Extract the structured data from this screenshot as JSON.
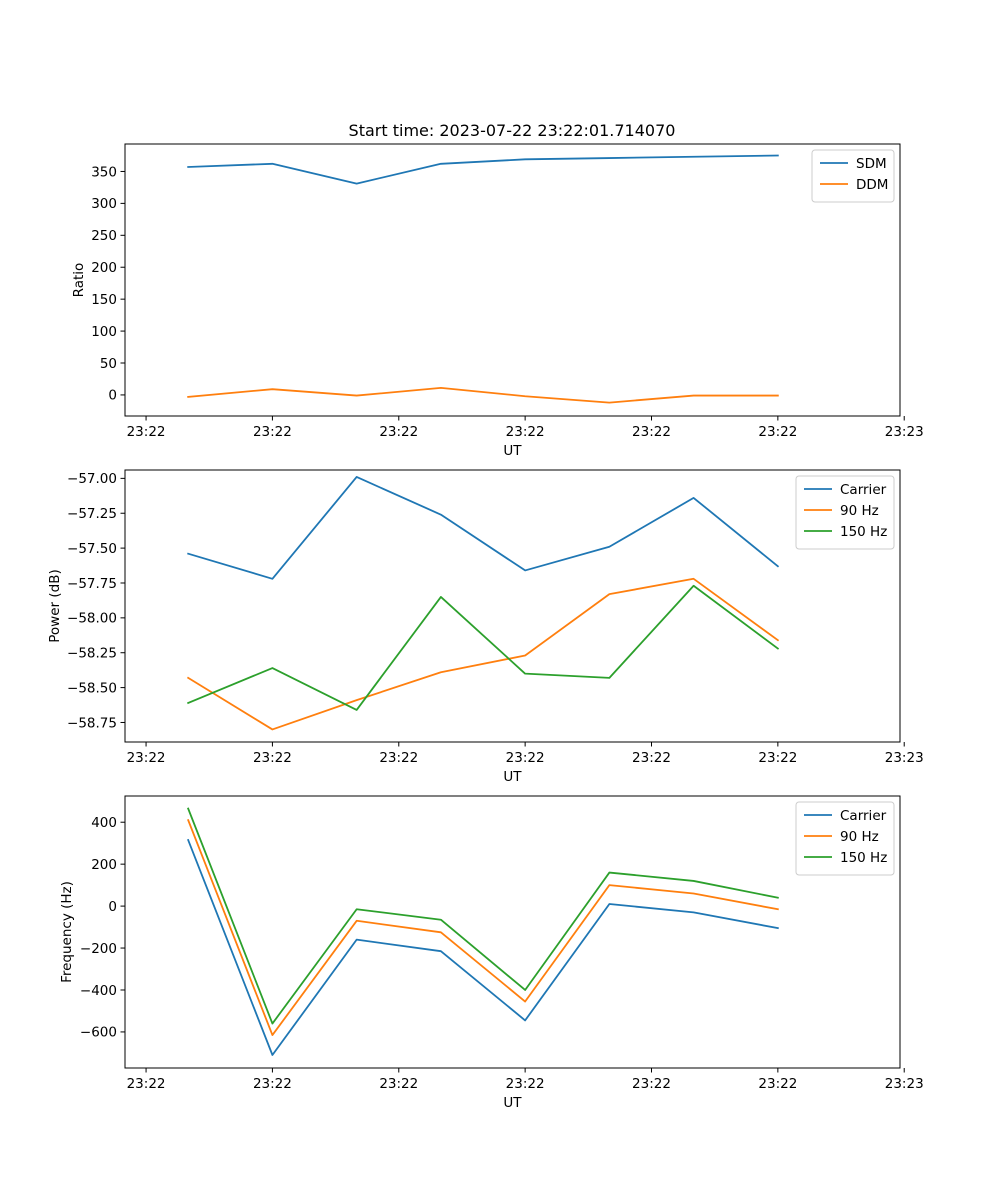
{
  "figure_title": "Start time: 2023-07-22 23:22:01.714070",
  "colors": {
    "blue": "#1f77b4",
    "orange": "#ff7f0e",
    "green": "#2ca02c"
  },
  "chart_data": [
    {
      "type": "line",
      "title": "Start time: 2023-07-22 23:22:01.714070",
      "xlabel": "UT",
      "ylabel": "Ratio",
      "xlim": [
        0,
        9.2
      ],
      "x": [
        0.75,
        1.75,
        2.75,
        3.75,
        4.75,
        5.75,
        6.75,
        7.75
      ],
      "xticks": [
        0.25,
        1.75,
        3.25,
        4.75,
        6.25,
        7.75,
        9.25
      ],
      "xtick_labels": [
        "23:22",
        "23:22",
        "23:22",
        "23:22",
        "23:22",
        "23:22",
        "23:23"
      ],
      "ylim": [
        -33,
        393
      ],
      "yticks": [
        0,
        50,
        100,
        150,
        200,
        250,
        300,
        350
      ],
      "ytick_labels": [
        "0",
        "50",
        "100",
        "150",
        "200",
        "250",
        "300",
        "350"
      ],
      "legend_position": "top-right",
      "series": [
        {
          "name": "SDM",
          "color": "#1f77b4",
          "values": [
            357,
            362,
            331,
            362,
            369,
            371,
            373,
            375
          ]
        },
        {
          "name": "DDM",
          "color": "#ff7f0e",
          "values": [
            -3,
            9,
            -1,
            11,
            -2,
            -12,
            -1,
            -1
          ]
        }
      ]
    },
    {
      "type": "line",
      "title": "",
      "xlabel": "UT",
      "ylabel": "Power (dB)",
      "xlim": [
        0,
        9.2
      ],
      "x": [
        0.75,
        1.75,
        2.75,
        3.75,
        4.75,
        5.75,
        6.75,
        7.75
      ],
      "xticks": [
        0.25,
        1.75,
        3.25,
        4.75,
        6.25,
        7.75,
        9.25
      ],
      "xtick_labels": [
        "23:22",
        "23:22",
        "23:22",
        "23:22",
        "23:22",
        "23:22",
        "23:23"
      ],
      "ylim": [
        -58.89,
        -56.94
      ],
      "yticks": [
        -58.75,
        -58.5,
        -58.25,
        -58.0,
        -57.75,
        -57.5,
        -57.25,
        -57.0
      ],
      "ytick_labels": [
        "−58.75",
        "−58.50",
        "−58.25",
        "−58.00",
        "−57.75",
        "−57.50",
        "−57.25",
        "−57.00"
      ],
      "legend_position": "top-right",
      "series": [
        {
          "name": "Carrier",
          "color": "#1f77b4",
          "values": [
            -57.54,
            -57.72,
            -56.99,
            -57.26,
            -57.66,
            -57.49,
            -57.14,
            -57.63
          ]
        },
        {
          "name": "90 Hz",
          "color": "#ff7f0e",
          "values": [
            -58.43,
            -58.8,
            -58.59,
            -58.39,
            -58.27,
            -57.83,
            -57.72,
            -58.16
          ]
        },
        {
          "name": "150 Hz",
          "color": "#2ca02c",
          "values": [
            -58.61,
            -58.36,
            -58.66,
            -57.85,
            -58.4,
            -58.43,
            -57.77,
            -58.22
          ]
        }
      ]
    },
    {
      "type": "line",
      "title": "",
      "xlabel": "UT",
      "ylabel": "Frequency (Hz)",
      "xlim": [
        0,
        9.2
      ],
      "x": [
        0.75,
        1.75,
        2.75,
        3.75,
        4.75,
        5.75,
        6.75,
        7.75
      ],
      "xticks": [
        0.25,
        1.75,
        3.25,
        4.75,
        6.25,
        7.75,
        9.25
      ],
      "xtick_labels": [
        "23:22",
        "23:22",
        "23:22",
        "23:22",
        "23:22",
        "23:22",
        "23:23"
      ],
      "ylim": [
        -772,
        525
      ],
      "yticks": [
        -600,
        -400,
        -200,
        0,
        200,
        400
      ],
      "ytick_labels": [
        "−600",
        "−400",
        "−200",
        "0",
        "200",
        "400"
      ],
      "legend_position": "top-right",
      "series": [
        {
          "name": "Carrier",
          "color": "#1f77b4",
          "values": [
            315,
            -710,
            -160,
            -215,
            -545,
            10,
            -30,
            -105
          ]
        },
        {
          "name": "90 Hz",
          "color": "#ff7f0e",
          "values": [
            410,
            -615,
            -70,
            -125,
            -455,
            100,
            60,
            -15
          ]
        },
        {
          "name": "150 Hz",
          "color": "#2ca02c",
          "values": [
            465,
            -560,
            -15,
            -65,
            -400,
            160,
            120,
            40
          ]
        }
      ]
    }
  ]
}
